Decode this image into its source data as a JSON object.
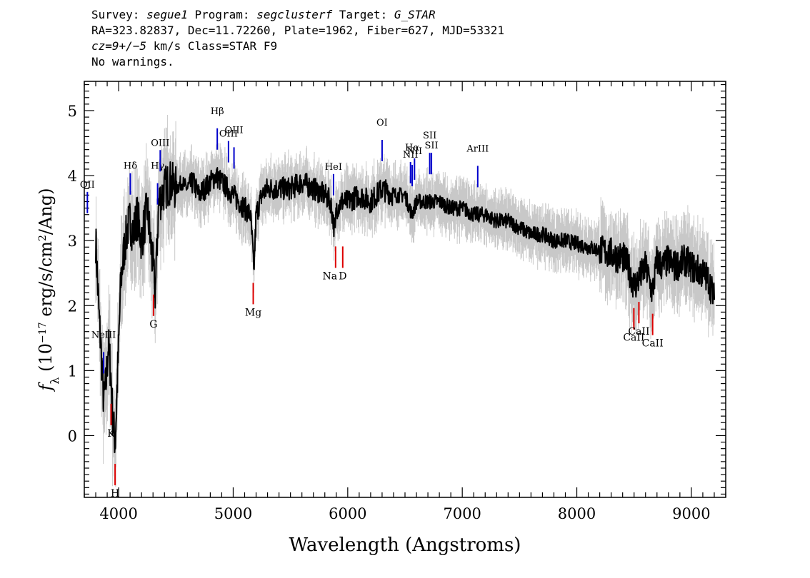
{
  "header": {
    "line1_pre_survey": "Survey: ",
    "survey": "segue1",
    "line1_pre_program": " Program: ",
    "program": "segclusterf",
    "line1_pre_target": " Target: ",
    "target": "G_STAR",
    "line2": "RA=323.82837, Dec=11.72260, Plate=1962, Fiber=627, MJD=53321",
    "cz_value": "cz=9+/−5",
    "line3_rest": " km/s Class=STAR F9",
    "line4": "No warnings."
  },
  "chart_data": {
    "type": "line",
    "title": "",
    "xlabel": "Wavelength (Angstroms)",
    "ylabel_parts": [
      "f",
      "λ",
      " (10",
      "−17",
      " erg/s/cm",
      "2",
      "/Ang)"
    ],
    "xlim": [
      3700,
      9300
    ],
    "ylim": [
      -0.95,
      5.45
    ],
    "xticks": [
      4000,
      5000,
      6000,
      7000,
      8000,
      9000
    ],
    "yticks": [
      0,
      1,
      2,
      3,
      4,
      5
    ],
    "grid": false,
    "colors": {
      "flux": "#000000",
      "error_band": "#c8c8c8",
      "emission": "#0000cc",
      "absorption": "#dd0000"
    },
    "series": [
      {
        "role": "smoothed_flux",
        "x": [
          3800,
          3830,
          3850,
          3870,
          3890,
          3910,
          3930,
          3950,
          3970,
          3990,
          4020,
          4050,
          4080,
          4100,
          4130,
          4160,
          4200,
          4250,
          4300,
          4320,
          4350,
          4380,
          4400,
          4450,
          4500,
          4550,
          4600,
          4650,
          4700,
          4750,
          4800,
          4850,
          4900,
          4950,
          5000,
          5050,
          5100,
          5150,
          5170,
          5180,
          5200,
          5250,
          5300,
          5400,
          5500,
          5600,
          5700,
          5800,
          5850,
          5890,
          5900,
          5950,
          6000,
          6100,
          6200,
          6300,
          6400,
          6500,
          6560,
          6600,
          6700,
          6800,
          6900,
          7000,
          7100,
          7200,
          7300,
          7400,
          7500,
          7600,
          7700,
          7800,
          7900,
          8000,
          8100,
          8200,
          8300,
          8350,
          8400,
          8450,
          8500,
          8540,
          8600,
          8660,
          8700,
          8750,
          8800,
          8850,
          8900,
          8950,
          9000,
          9050,
          9100,
          9150,
          9200
        ],
        "y": [
          3.0,
          1.8,
          1.2,
          0.5,
          0.8,
          1.4,
          1.0,
          0.2,
          -0.1,
          0.9,
          2.4,
          2.9,
          3.2,
          3.3,
          3.1,
          3.4,
          3.0,
          3.5,
          2.6,
          2.2,
          3.6,
          3.7,
          3.8,
          3.9,
          3.8,
          3.9,
          3.8,
          3.9,
          3.7,
          3.8,
          3.9,
          4.0,
          3.9,
          3.8,
          3.7,
          3.6,
          3.5,
          3.4,
          2.9,
          2.5,
          3.4,
          3.7,
          3.8,
          3.8,
          3.8,
          3.9,
          3.8,
          3.7,
          3.6,
          3.1,
          3.5,
          3.6,
          3.6,
          3.7,
          3.6,
          3.8,
          3.7,
          3.7,
          3.4,
          3.6,
          3.6,
          3.6,
          3.5,
          3.5,
          3.4,
          3.4,
          3.3,
          3.3,
          3.2,
          3.1,
          3.1,
          3.0,
          3.0,
          2.95,
          2.9,
          2.85,
          2.8,
          2.75,
          2.75,
          2.6,
          2.3,
          2.4,
          2.6,
          2.2,
          2.7,
          2.6,
          2.7,
          2.6,
          2.65,
          2.7,
          2.6,
          2.55,
          2.5,
          2.4,
          2.1
        ]
      }
    ],
    "emission_lines": [
      {
        "label": "OII",
        "x": 3727
      },
      {
        "label": "NeIII",
        "x": 3869
      },
      {
        "label": "Hδ",
        "x": 4102
      },
      {
        "label": "Hγ",
        "x": 4340
      },
      {
        "label": "OIII",
        "x": 4363
      },
      {
        "label": "Hβ",
        "x": 4861
      },
      {
        "label": "OIII",
        "x": 4959
      },
      {
        "label": "OIII",
        "x": 5007
      },
      {
        "label": "HeI",
        "x": 5876
      },
      {
        "label": "OI",
        "x": 6300
      },
      {
        "label": "NII",
        "x": 6548
      },
      {
        "label": "Hα",
        "x": 6563
      },
      {
        "label": "NII",
        "x": 6583
      },
      {
        "label": "SII",
        "x": 6716
      },
      {
        "label": "SII",
        "x": 6731
      },
      {
        "label": "ArIII",
        "x": 7135
      }
    ],
    "absorption_lines": [
      {
        "label": "K",
        "x": 3934
      },
      {
        "label": "H",
        "x": 3969
      },
      {
        "label": "G",
        "x": 4304
      },
      {
        "label": "Mg",
        "x": 5175
      },
      {
        "label": "Na",
        "x": 5894
      },
      {
        "label": "D",
        "x": 5894
      },
      {
        "label": "CaII",
        "x": 8498
      },
      {
        "label": "CaII",
        "x": 8542
      },
      {
        "label": "CaII",
        "x": 8662
      }
    ]
  }
}
